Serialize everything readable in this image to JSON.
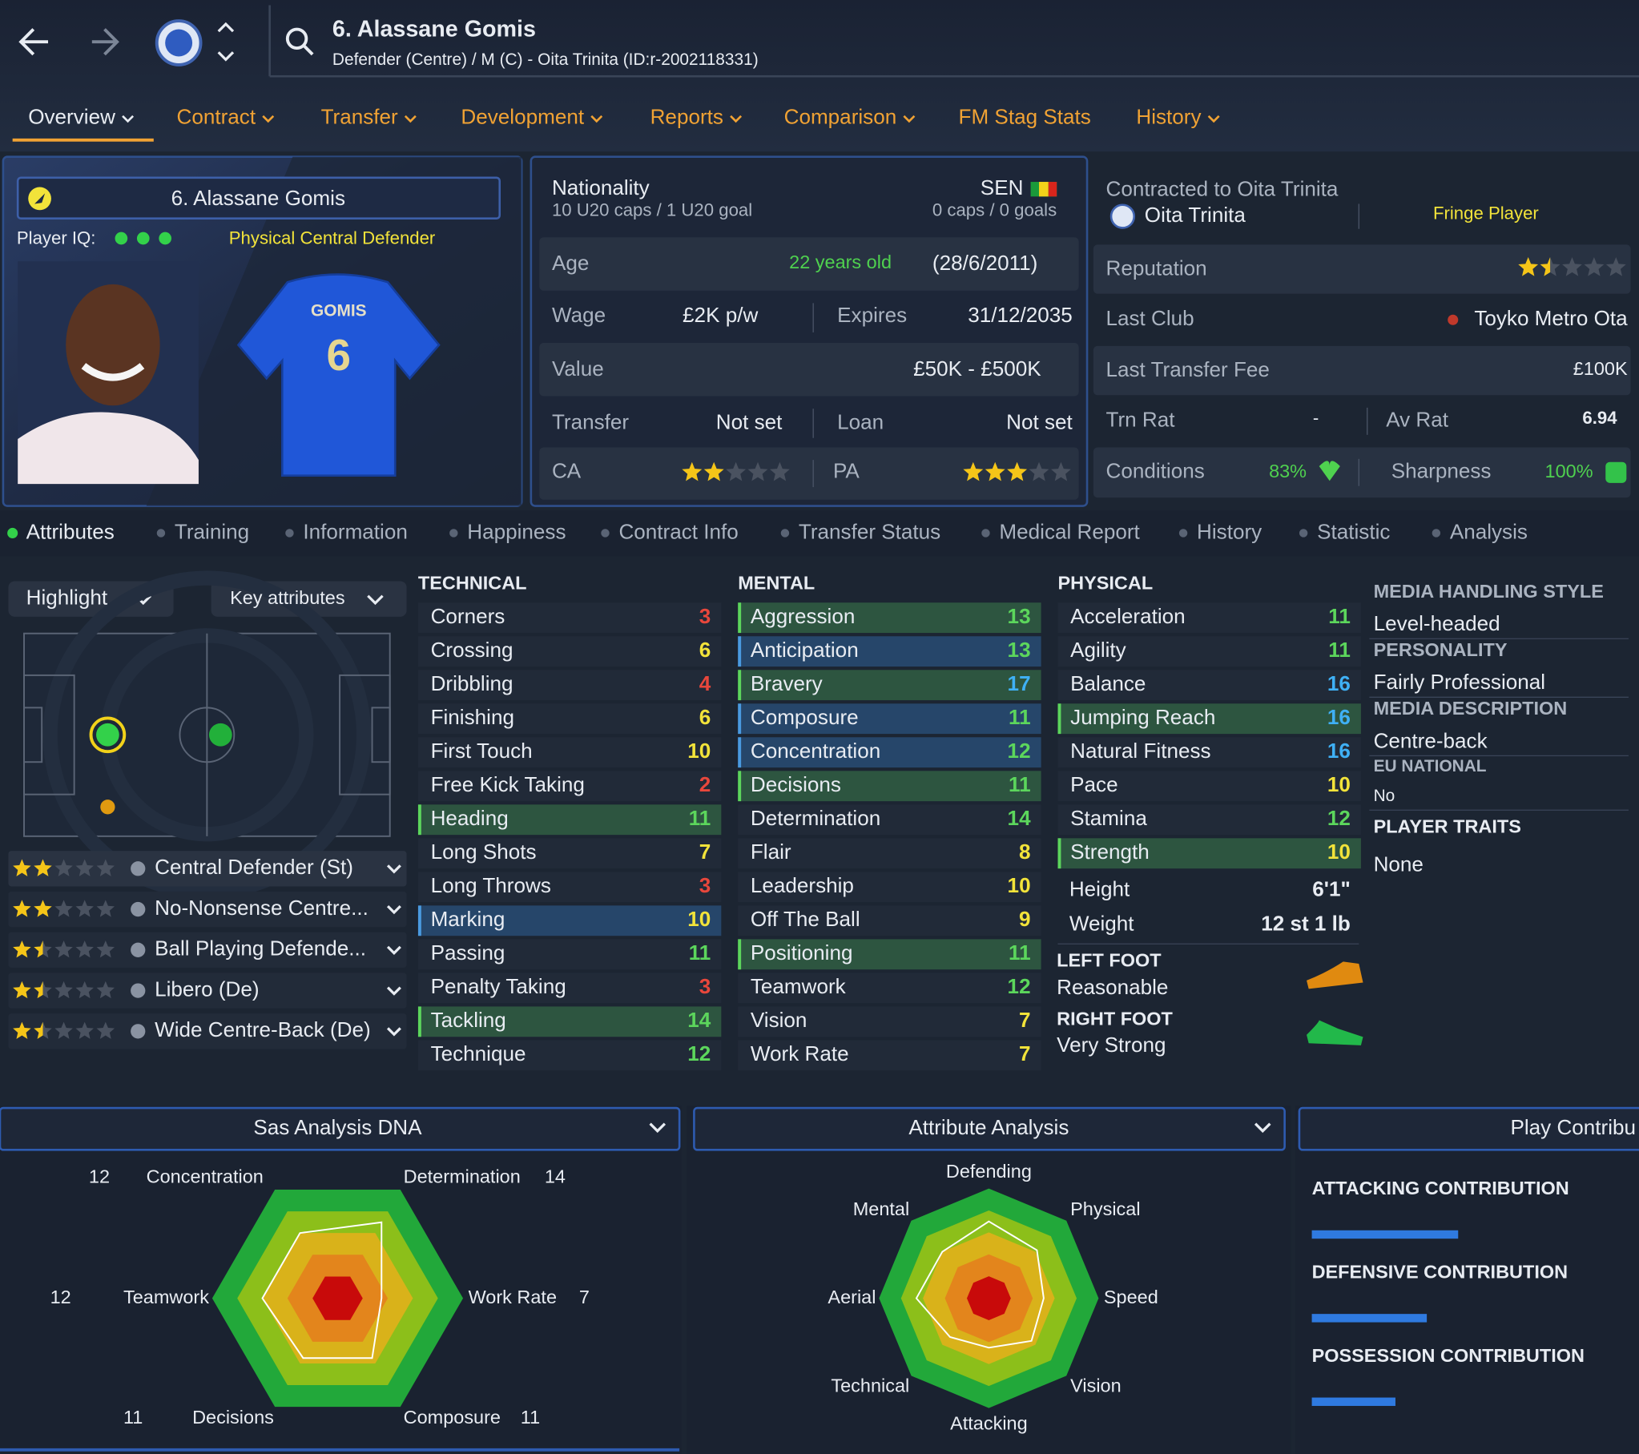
{
  "header": {
    "title": "6. Alassane Gomis",
    "subtitle": "Defender (Centre) / M (C) - Oita Trinita (ID:r-2002118331)"
  },
  "nav_tabs": [
    "Overview",
    "Contract",
    "Transfer",
    "Development",
    "Reports",
    "Comparison",
    "FM Stag Stats",
    "History"
  ],
  "profile": {
    "name": "6. Alassane Gomis",
    "iq_label": "Player IQ:",
    "role": "Physical Central Defender",
    "shirt_name": "GOMIS",
    "shirt_number": "6"
  },
  "details": {
    "nationality": {
      "label": "Nationality",
      "youth": "10 U20 caps / 1 U20 goal",
      "nation": "SEN",
      "caps": "0 caps / 0 goals"
    },
    "age": {
      "label": "Age",
      "value": "22 years old",
      "dob": "(28/6/2011)"
    },
    "wage": {
      "label": "Wage",
      "value": "£2K p/w",
      "expires_label": "Expires",
      "expires": "31/12/2035"
    },
    "value": {
      "label": "Value",
      "value": "£50K - £500K"
    },
    "transfer": {
      "label": "Transfer",
      "value": "Not set",
      "loan_label": "Loan",
      "loan": "Not set"
    },
    "ability": {
      "ca_label": "CA",
      "pa_label": "PA"
    }
  },
  "club": {
    "contract_label": "Contracted to Oita Trinita",
    "club": "Oita Trinita",
    "status": "Fringe Player",
    "reputation_label": "Reputation",
    "last_club_label": "Last Club",
    "last_club": "Toyko Metro Ota",
    "fee_label": "Last Transfer Fee",
    "fee": "£100K",
    "trn_rat_label": "Trn Rat",
    "trn_rat": "-",
    "av_rat_label": "Av Rat",
    "av_rat": "6.94",
    "conditions_label": "Conditions",
    "conditions": "83%",
    "sharpness_label": "Sharpness",
    "sharpness": "100%"
  },
  "sub_tabs": [
    "Attributes",
    "Training",
    "Information",
    "Happiness",
    "Contract Info",
    "Transfer Status",
    "Medical Report",
    "History",
    "Statistic",
    "Analysis"
  ],
  "filters": {
    "highlight": "Highlight",
    "key_attributes": "Key attributes"
  },
  "roles": [
    "Central Defender (St)",
    "No-Nonsense Centre...",
    "Ball Playing Defende...",
    "Libero (De)",
    "Wide Centre-Back (De)"
  ],
  "attributes": [
    {
      "title": "TECHNICAL",
      "rows": [
        {
          "name": "Corners",
          "value": 3
        },
        {
          "name": "Crossing",
          "value": 6
        },
        {
          "name": "Dribbling",
          "value": 4
        },
        {
          "name": "Finishing",
          "value": 6
        },
        {
          "name": "First Touch",
          "value": 10
        },
        {
          "name": "Free Kick Taking",
          "value": 2
        },
        {
          "name": "Heading",
          "value": 11,
          "key": "green"
        },
        {
          "name": "Long Shots",
          "value": 7
        },
        {
          "name": "Long Throws",
          "value": 3
        },
        {
          "name": "Marking",
          "value": 10,
          "key": "blue"
        },
        {
          "name": "Passing",
          "value": 11
        },
        {
          "name": "Penalty Taking",
          "value": 3
        },
        {
          "name": "Tackling",
          "value": 14,
          "key": "green"
        },
        {
          "name": "Technique",
          "value": 12
        }
      ]
    },
    {
      "title": "MENTAL",
      "rows": [
        {
          "name": "Aggression",
          "value": 13,
          "key": "green"
        },
        {
          "name": "Anticipation",
          "value": 13,
          "key": "blue"
        },
        {
          "name": "Bravery",
          "value": 17,
          "key": "green"
        },
        {
          "name": "Composure",
          "value": 11,
          "key": "blue"
        },
        {
          "name": "Concentration",
          "value": 12,
          "key": "blue"
        },
        {
          "name": "Decisions",
          "value": 11,
          "key": "green"
        },
        {
          "name": "Determination",
          "value": 14
        },
        {
          "name": "Flair",
          "value": 8
        },
        {
          "name": "Leadership",
          "value": 10
        },
        {
          "name": "Off The Ball",
          "value": 9
        },
        {
          "name": "Positioning",
          "value": 11,
          "key": "green"
        },
        {
          "name": "Teamwork",
          "value": 12
        },
        {
          "name": "Vision",
          "value": 7
        },
        {
          "name": "Work Rate",
          "value": 7
        }
      ]
    },
    {
      "title": "PHYSICAL",
      "rows": [
        {
          "name": "Acceleration",
          "value": 11
        },
        {
          "name": "Agility",
          "value": 11
        },
        {
          "name": "Balance",
          "value": 16
        },
        {
          "name": "Jumping Reach",
          "value": 16,
          "key": "green"
        },
        {
          "name": "Natural Fitness",
          "value": 16
        },
        {
          "name": "Pace",
          "value": 10
        },
        {
          "name": "Stamina",
          "value": 12
        },
        {
          "name": "Strength",
          "value": 10,
          "key": "green"
        }
      ]
    }
  ],
  "physical_extra": {
    "height_label": "Height",
    "height": "6'1\"",
    "weight_label": "Weight",
    "weight": "12 st 1 lb",
    "left_foot_label": "LEFT FOOT",
    "left_foot": "Reasonable",
    "right_foot_label": "RIGHT FOOT",
    "right_foot": "Very Strong"
  },
  "profile_info": [
    {
      "label": "MEDIA HANDLING STYLE",
      "value": "Level-headed"
    },
    {
      "label": "PERSONALITY",
      "value": "Fairly Professional"
    },
    {
      "label": "MEDIA DESCRIPTION",
      "value": "Centre-back"
    },
    {
      "label": "EU NATIONAL",
      "value": "No"
    },
    {
      "label": "PLAYER TRAITS",
      "value": "None"
    }
  ],
  "dna": {
    "title": "Sas Analysis DNA",
    "axes": [
      {
        "name": "Concentration",
        "value": 12
      },
      {
        "name": "Determination",
        "value": 14
      },
      {
        "name": "Work Rate",
        "value": 7
      },
      {
        "name": "Composure",
        "value": 11
      },
      {
        "name": "Decisions",
        "value": 11
      },
      {
        "name": "Teamwork",
        "value": 12
      }
    ]
  },
  "attribute_analysis": {
    "title": "Attribute Analysis",
    "axes": [
      "Defending",
      "Physical",
      "Speed",
      "Vision",
      "Attacking",
      "Technical",
      "Aerial",
      "Mental"
    ]
  },
  "contribution": {
    "title": "Play Contribu",
    "items": [
      "ATTACKING CONTRIBUTION",
      "DEFENSIVE CONTRIBUTION",
      "POSSESSION CONTRIBUTION"
    ]
  }
}
